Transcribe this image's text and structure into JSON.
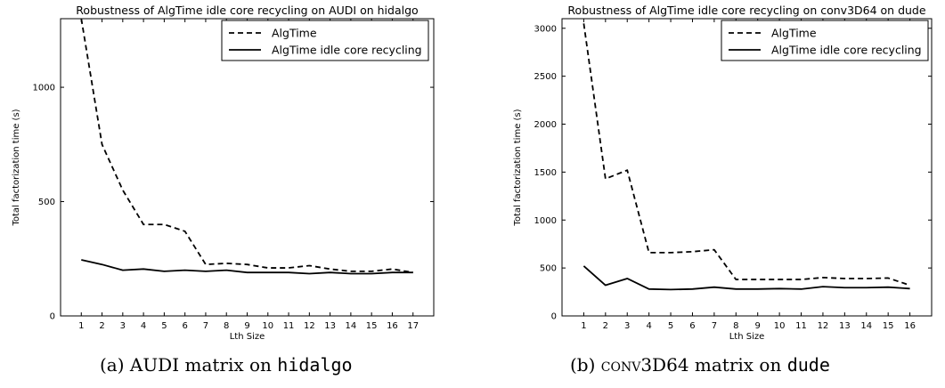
{
  "chart_data": [
    {
      "type": "line",
      "title": "Robustness of AlgTime idle core recycling on AUDI on hidalgo",
      "xlabel": "Lth Size",
      "ylabel": "Total factorization time (s)",
      "xlim": [
        0,
        18
      ],
      "ylim": [
        0,
        1300
      ],
      "x_ticks": [
        1,
        2,
        3,
        4,
        5,
        6,
        7,
        8,
        9,
        10,
        11,
        12,
        13,
        14,
        15,
        16,
        17
      ],
      "y_ticks": [
        0,
        500,
        1000
      ],
      "legend": "top-right",
      "grid": false,
      "x": [
        1,
        2,
        3,
        4,
        5,
        6,
        7,
        8,
        9,
        10,
        11,
        12,
        13,
        14,
        15,
        16,
        17
      ],
      "series": [
        {
          "name": "AlgTime",
          "style": "dashed",
          "values": [
            1300,
            750,
            550,
            400,
            400,
            370,
            225,
            230,
            225,
            210,
            210,
            220,
            205,
            195,
            195,
            205,
            190
          ]
        },
        {
          "name": "AlgTime idle core recycling",
          "style": "solid",
          "values": [
            245,
            225,
            200,
            205,
            195,
            200,
            195,
            200,
            190,
            190,
            190,
            185,
            190,
            185,
            185,
            190,
            190
          ]
        }
      ],
      "caption_label": "(a) AUDI matrix on ",
      "caption_code": "hidalgo"
    },
    {
      "type": "line",
      "title": "Robustness of AlgTime idle core recycling on conv3D64 on dude",
      "xlabel": "Lth Size",
      "ylabel": "Total factorization time (s)",
      "xlim": [
        0,
        17
      ],
      "ylim": [
        0,
        3100
      ],
      "x_ticks": [
        1,
        2,
        3,
        4,
        5,
        6,
        7,
        8,
        9,
        10,
        11,
        12,
        13,
        14,
        15,
        16
      ],
      "y_ticks": [
        0,
        500,
        1000,
        1500,
        2000,
        2500,
        3000
      ],
      "legend": "top-right",
      "grid": false,
      "x": [
        1,
        2,
        3,
        4,
        5,
        6,
        7,
        8,
        9,
        10,
        11,
        12,
        13,
        14,
        15,
        16
      ],
      "series": [
        {
          "name": "AlgTime",
          "style": "dashed",
          "values": [
            3050,
            1430,
            1520,
            660,
            660,
            670,
            690,
            380,
            380,
            380,
            380,
            400,
            390,
            390,
            395,
            320
          ]
        },
        {
          "name": "AlgTime idle core recycling",
          "style": "solid",
          "values": [
            520,
            320,
            390,
            280,
            275,
            280,
            300,
            280,
            280,
            285,
            280,
            305,
            295,
            295,
            300,
            285
          ]
        }
      ],
      "caption_label": "(b) ",
      "caption_smallcaps": "conv",
      "caption_after": "3D64 matrix on ",
      "caption_code": "dude"
    }
  ]
}
